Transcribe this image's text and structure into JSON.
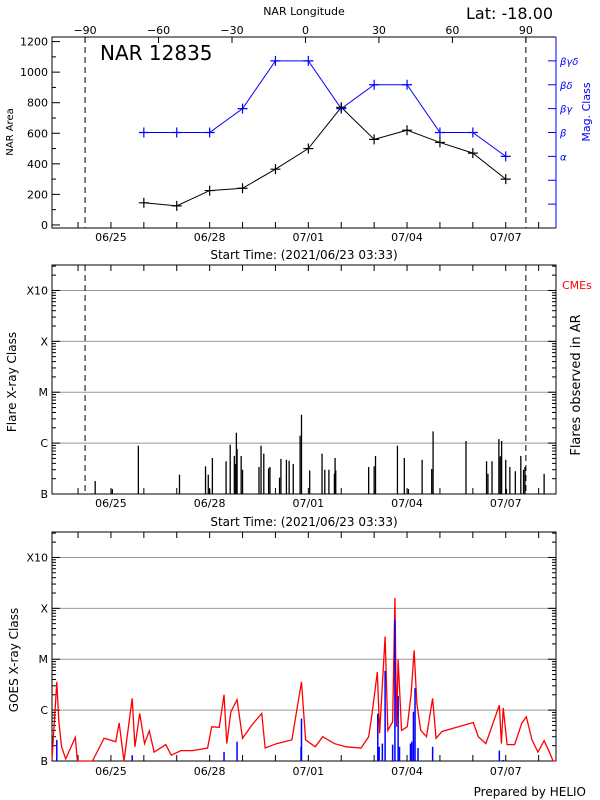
{
  "chart_data": [
    {
      "type": "line",
      "title": "NAR 12835",
      "top_right_text": "Lat: -18.00",
      "top_axis_label": "NAR Longitude",
      "top_axis_ticks": [
        -90,
        -60,
        -30,
        0,
        30,
        60,
        90
      ],
      "top_axis_range": [
        -103.5,
        102.3
      ],
      "limb_longitudes": [
        -90,
        90
      ],
      "xlabel": "Start Time: (2021/06/23 03:33)",
      "xlim": [
        "2021-06-23 05:00",
        "2021-07-08 12:40"
      ],
      "x_ticks": [
        {
          "date": "2021-06-25 00:00",
          "label": "06/25"
        },
        {
          "date": "2021-06-28 00:00",
          "label": "06/28"
        },
        {
          "date": "2021-07-01 00:00",
          "label": "07/01"
        },
        {
          "date": "2021-07-04 00:00",
          "label": "07/04"
        },
        {
          "date": "2021-07-07 00:00",
          "label": "07/07"
        }
      ],
      "ylabel": "NAR Area",
      "ylim": [
        -20,
        1230
      ],
      "y_ticks": [
        0,
        200,
        400,
        600,
        800,
        1000,
        1200
      ],
      "y2label": "Mag. Class",
      "y2_ticks": [
        "",
        "",
        "α",
        "β",
        "βγ",
        "βδ",
        "βγδ"
      ],
      "series": [
        {
          "axis": "left",
          "color": "#000000",
          "x": [
            "2021-06-26 00:00",
            "2021-06-27 00:00",
            "2021-06-28 00:00",
            "2021-06-29 00:00",
            "2021-06-30 00:00",
            "2021-07-01 00:00",
            "2021-07-02 00:00",
            "2021-07-03 00:00",
            "2021-07-04 00:00",
            "2021-07-05 00:00",
            "2021-07-06 00:00",
            "2021-07-07 00:00"
          ],
          "values": [
            145,
            125,
            225,
            240,
            365,
            500,
            770,
            560,
            620,
            540,
            470,
            300
          ]
        },
        {
          "axis": "right",
          "color": "#0000ff",
          "x": [
            "2021-06-26 00:00",
            "2021-06-27 00:00",
            "2021-06-28 00:00",
            "2021-06-29 00:00",
            "2021-06-30 00:00",
            "2021-07-01 00:00",
            "2021-07-02 00:00",
            "2021-07-03 00:00",
            "2021-07-04 00:00",
            "2021-07-05 00:00",
            "2021-07-06 00:00",
            "2021-07-07 00:00"
          ],
          "values": [
            "β",
            "β",
            "β",
            "βγ",
            "βγδ",
            "βγδ",
            "βγ",
            "βδ",
            "βδ",
            "β",
            "β",
            "α"
          ]
        }
      ]
    },
    {
      "type": "bar",
      "xlabel": "Start Time: (2021/06/23 03:33)",
      "ylabel": "Flare X-ray Class",
      "y2label": "Flares observed in AR",
      "cme_label": "CMEs",
      "cme_color": "#ff0000",
      "yscale": "log",
      "ylim": [
        "B1",
        "X100"
      ],
      "y_ticks": [
        "B",
        "C",
        "M",
        "X",
        "X10"
      ],
      "grid": true,
      "flares": [
        [
          "2021-06-24 12:30",
          "B1.8"
        ],
        [
          "2021-06-25 01:00",
          "B1.25"
        ],
        [
          "2021-06-25 20:00",
          "B8.9"
        ],
        [
          "2021-06-27 02:00",
          "B2.4"
        ],
        [
          "2021-06-27 21:00",
          "B3.5"
        ],
        [
          "2021-06-27 23:00",
          "B2.4"
        ],
        [
          "2021-06-28 00:00",
          "B1.25"
        ],
        [
          "2021-06-28 02:00",
          "B5.1"
        ],
        [
          "2021-06-28 12:00",
          "B4.4"
        ],
        [
          "2021-06-28 15:00",
          "B9.3"
        ],
        [
          "2021-06-28 18:00",
          "B5.6"
        ],
        [
          "2021-06-28 19:00",
          "B3.9"
        ],
        [
          "2021-06-28 19:30",
          "C1.6"
        ],
        [
          "2021-06-28 20:00",
          "B7.7"
        ],
        [
          "2021-06-28 23:00",
          "B5.6"
        ],
        [
          "2021-06-29 00:00",
          "B3.0"
        ],
        [
          "2021-06-29 12:00",
          "B3.4"
        ],
        [
          "2021-06-29 13:30",
          "B8.9"
        ],
        [
          "2021-06-29 15:30",
          "B6.2"
        ],
        [
          "2021-06-29 19:00",
          "B3.2"
        ],
        [
          "2021-06-29 20:00",
          "B3.4"
        ],
        [
          "2021-06-30 03:00",
          "B2.1"
        ],
        [
          "2021-06-30 04:00",
          "B4.9"
        ],
        [
          "2021-06-30 08:00",
          "B4.7"
        ],
        [
          "2021-06-30 10:00",
          "B4.5"
        ],
        [
          "2021-06-30 13:00",
          "B3.9"
        ],
        [
          "2021-06-30 18:00",
          "C1.4"
        ],
        [
          "2021-06-30 19:00",
          "C3.6"
        ],
        [
          "2021-07-01 01:00",
          "B2.9"
        ],
        [
          "2021-07-01 10:00",
          "B6.2"
        ],
        [
          "2021-07-01 12:00",
          "B3.0"
        ],
        [
          "2021-07-01 15:00",
          "B3.0"
        ],
        [
          "2021-07-01 19:00",
          "B2.5"
        ],
        [
          "2021-07-01 19:30",
          "B5.1"
        ],
        [
          "2021-07-01 20:00",
          "B2.9"
        ],
        [
          "2021-07-02 20:00",
          "B3.4"
        ],
        [
          "2021-07-03 00:00",
          "B3.5"
        ],
        [
          "2021-07-03 01:00",
          "B5.6"
        ],
        [
          "2021-07-03 17:00",
          "B8.9"
        ],
        [
          "2021-07-03 22:00",
          "B5.1"
        ],
        [
          "2021-07-04 01:00",
          "B1.25"
        ],
        [
          "2021-07-04 11:00",
          "B4.7"
        ],
        [
          "2021-07-04 18:00",
          "B3.1"
        ],
        [
          "2021-07-04 19:00",
          "C1.7"
        ],
        [
          "2021-07-05 19:00",
          "C1.1"
        ],
        [
          "2021-07-06 10:00",
          "B4.4"
        ],
        [
          "2021-07-06 11:00",
          "B2.5"
        ],
        [
          "2021-07-06 14:00",
          "B4.4"
        ],
        [
          "2021-07-06 19:00",
          "C1.2"
        ],
        [
          "2021-07-06 20:00",
          "B5.5"
        ],
        [
          "2021-07-06 21:00",
          "C1.1"
        ],
        [
          "2021-07-07 00:00",
          "B4.7"
        ],
        [
          "2021-07-07 00:30",
          "B1.25"
        ],
        [
          "2021-07-07 03:00",
          "B3.4"
        ],
        [
          "2021-07-07 07:00",
          "B2.8"
        ],
        [
          "2021-07-07 11:00",
          "B5.6"
        ],
        [
          "2021-07-07 13:00",
          "B3.0"
        ],
        [
          "2021-07-07 14:00",
          "B3.4"
        ],
        [
          "2021-07-08 04:00",
          "B2.5"
        ]
      ]
    },
    {
      "type": "line",
      "ylabel": "GOES X-ray Class",
      "yscale": "log",
      "ylim": [
        "B1",
        "X100"
      ],
      "y_ticks": [
        "B",
        "C",
        "M",
        "X",
        "X10"
      ],
      "grid": true,
      "line_color": "#ff0000",
      "flare_color": "#0000ff",
      "footer": "Prepared by HELIO",
      "goes_flux": [
        [
          "2021-06-23 05:00",
          "B1.05"
        ],
        [
          "2021-06-23 08:30",
          "C3.6"
        ],
        [
          "2021-06-23 10:00",
          "B5.9"
        ],
        [
          "2021-06-23 12:00",
          "B1.9"
        ],
        [
          "2021-06-23 15:00",
          "B1.1"
        ],
        [
          "2021-06-23 22:00",
          "B2.9"
        ],
        [
          "2021-06-23 23:30",
          "B1.0"
        ],
        [
          "2021-06-24 10:30",
          "B1.0"
        ],
        [
          "2021-06-24 19:00",
          "B2.8"
        ],
        [
          "2021-06-25 03:30",
          "B2.4"
        ],
        [
          "2021-06-25 06:00",
          "B5.6"
        ],
        [
          "2021-06-25 09:30",
          "B1.0"
        ],
        [
          "2021-06-25 15:30",
          "C1.7"
        ],
        [
          "2021-06-25 17:30",
          "B1.9"
        ],
        [
          "2021-06-25 21:00",
          "B8.6"
        ],
        [
          "2021-06-26 00:30",
          "B2.2"
        ],
        [
          "2021-06-26 04:00",
          "B3.9"
        ],
        [
          "2021-06-26 07:30",
          "B1.5"
        ],
        [
          "2021-06-26 16:00",
          "B2.1"
        ],
        [
          "2021-06-26 20:00",
          "B1.3"
        ],
        [
          "2021-06-27 03:00",
          "B1.6"
        ],
        [
          "2021-06-27 11:30",
          "B1.6"
        ],
        [
          "2021-06-27 22:30",
          "B1.8"
        ],
        [
          "2021-06-28 01:30",
          "B4.7"
        ],
        [
          "2021-06-28 07:00",
          "B4.6"
        ],
        [
          "2021-06-28 10:30",
          "C2.0"
        ],
        [
          "2021-06-28 12:30",
          "B2.2"
        ],
        [
          "2021-06-28 15:30",
          "B9.3"
        ],
        [
          "2021-06-28 20:00",
          "C1.6"
        ],
        [
          "2021-06-29 00:00",
          "B2.8"
        ],
        [
          "2021-06-29 07:20",
          "B5.3"
        ],
        [
          "2021-06-29 14:00",
          "B8.6"
        ],
        [
          "2021-06-29 16:30",
          "B1.8"
        ],
        [
          "2021-06-30 01:00",
          "B2.2"
        ],
        [
          "2021-06-30 12:00",
          "B2.6"
        ],
        [
          "2021-06-30 19:00",
          "C3.6"
        ],
        [
          "2021-06-30 22:00",
          "B2.6"
        ],
        [
          "2021-07-01 05:00",
          "B1.9"
        ],
        [
          "2021-07-01 10:30",
          "B3.0"
        ],
        [
          "2021-07-01 19:00",
          "B2.2"
        ],
        [
          "2021-07-02 03:30",
          "B1.9"
        ],
        [
          "2021-07-02 14:30",
          "B1.8"
        ],
        [
          "2021-07-02 20:00",
          "B3.0"
        ],
        [
          "2021-07-02 22:30",
          "B8.6"
        ],
        [
          "2021-07-03 02:20",
          "C5.6"
        ],
        [
          "2021-07-03 04:00",
          "B3.5"
        ],
        [
          "2021-07-03 08:00",
          "M2.8"
        ],
        [
          "2021-07-03 10:00",
          "B4.0"
        ],
        [
          "2021-07-03 13:30",
          "B5.9"
        ],
        [
          "2021-07-03 15:10",
          "X1.6"
        ],
        [
          "2021-07-03 16:20",
          "B4.7"
        ],
        [
          "2021-07-03 17:30",
          "M1.0"
        ],
        [
          "2021-07-03 20:00",
          "B4.0"
        ],
        [
          "2021-07-04 00:10",
          "B4.7"
        ],
        [
          "2021-07-04 03:00",
          "C2.1"
        ],
        [
          "2021-07-04 05:10",
          "M1.5"
        ],
        [
          "2021-07-04 07:10",
          "C1.35"
        ],
        [
          "2021-07-04 10:00",
          "B4.0"
        ],
        [
          "2021-07-04 14:10",
          "B3.0"
        ],
        [
          "2021-07-04 18:40",
          "C1.7"
        ],
        [
          "2021-07-04 21:10",
          "B2.8"
        ],
        [
          "2021-07-05 01:30",
          "B3.8"
        ],
        [
          "2021-07-06 00:20",
          "B5.7"
        ],
        [
          "2021-07-06 04:00",
          "B3.0"
        ],
        [
          "2021-07-06 09:30",
          "B2.2"
        ],
        [
          "2021-07-06 19:20",
          "C1.25"
        ],
        [
          "2021-07-06 20:50",
          "B2.2"
        ],
        [
          "2021-07-06 22:10",
          "C1.1"
        ],
        [
          "2021-07-07 01:00",
          "B2.1"
        ],
        [
          "2021-07-07 06:30",
          "B2.1"
        ],
        [
          "2021-07-07 11:40",
          "B5.5"
        ],
        [
          "2021-07-07 15:00",
          "B7.4"
        ],
        [
          "2021-07-07 19:10",
          "B2.6"
        ],
        [
          "2021-07-07 23:30",
          "B1.5"
        ],
        [
          "2021-07-08 04:00",
          "B2.5"
        ],
        [
          "2021-07-08 07:50",
          "B1.5"
        ],
        [
          "2021-07-08 10:30",
          "B1.0"
        ],
        [
          "2021-07-08 12:40",
          "B1.0"
        ]
      ],
      "goes_flares": [
        [
          "2021-06-23 08:30",
          "B2.6"
        ],
        [
          "2021-06-25 15:30",
          "B1.3"
        ],
        [
          "2021-06-28 10:30",
          "B1.5"
        ],
        [
          "2021-06-28 20:00",
          "B2.4"
        ],
        [
          "2021-06-30 18:40",
          "B1.9"
        ],
        [
          "2021-06-30 19:00",
          "B6.8"
        ],
        [
          "2021-07-03 02:40",
          "B8.5"
        ],
        [
          "2021-07-03 03:40",
          "B1.9"
        ],
        [
          "2021-07-03 06:00",
          "B2.2"
        ],
        [
          "2021-07-03 08:00",
          "C5.9"
        ],
        [
          "2021-07-03 13:30",
          "B2.1"
        ],
        [
          "2021-07-03 15:10",
          "M6.0"
        ],
        [
          "2021-07-03 17:30",
          "C1.9"
        ],
        [
          "2021-07-03 18:30",
          "B1.9"
        ],
        [
          "2021-07-04 02:30",
          "B2.2"
        ],
        [
          "2021-07-04 03:30",
          "B2.4"
        ],
        [
          "2021-07-04 04:40",
          "B9.3"
        ],
        [
          "2021-07-04 05:50",
          "C2.7"
        ],
        [
          "2021-07-04 08:00",
          "B1.8"
        ],
        [
          "2021-07-04 18:40",
          "B1.9"
        ],
        [
          "2021-07-06 19:20",
          "B1.6"
        ],
        [
          "2021-07-06 22:10",
          "B1.05"
        ]
      ]
    }
  ]
}
